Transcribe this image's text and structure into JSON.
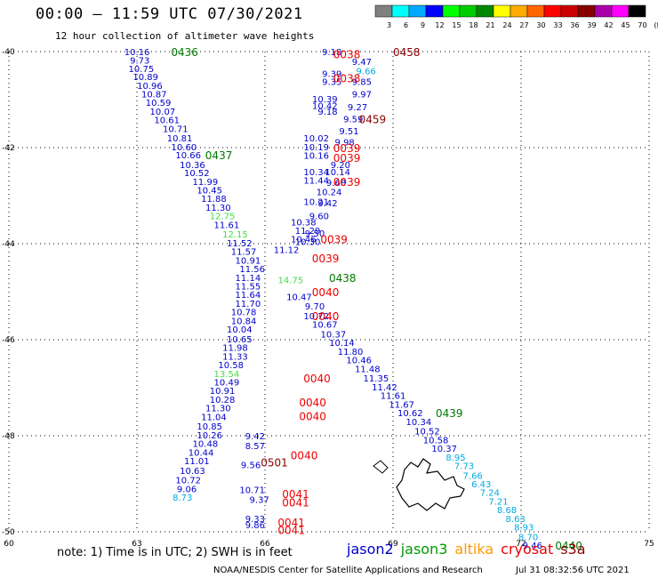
{
  "header": {
    "title": "00:00 – 11:59 UTC 07/30/2021",
    "subtitle": "12 hour collection of altimeter wave heights"
  },
  "footer": {
    "note": "note: 1) Time is in UTC; 2) SWH is in feet",
    "credit": "NOAA/NESDIS Center for Satellite Applications and Research",
    "timestamp": "Jul 31 08:32:56 UTC 2021"
  },
  "colorbar": {
    "labels": [
      "3",
      "6",
      "9",
      "12",
      "15",
      "18",
      "21",
      "24",
      "27",
      "30",
      "33",
      "36",
      "39",
      "42",
      "45",
      "70",
      "(ft)"
    ],
    "colors": [
      "#808080",
      "#00ffff",
      "#00aaff",
      "#0000ff",
      "#00ff00",
      "#00cc00",
      "#008800",
      "#ffff00",
      "#ffaa00",
      "#ff6600",
      "#ff0000",
      "#cc0000",
      "#880000",
      "#aa00aa",
      "#ff00ff",
      "#000000"
    ]
  },
  "legend": {
    "items": [
      {
        "name": "jason2",
        "color": "#0000cc"
      },
      {
        "name": "jason3",
        "color": "#009900"
      },
      {
        "name": "altika",
        "color": "#ff9900"
      },
      {
        "name": "cryosat",
        "color": "#ee0000"
      },
      {
        "name": "s3a",
        "color": "#880000"
      }
    ]
  },
  "chart_data": {
    "type": "scatter",
    "title": "00:00 – 11:59 UTC 07/30/2021",
    "subtitle": "12 hour collection of altimeter wave heights",
    "xlim": [
      60,
      75
    ],
    "ylim": [
      -50,
      -40
    ],
    "x_ticks": [
      60,
      63,
      66,
      69,
      72,
      75
    ],
    "y_ticks": [
      -40,
      -42,
      -44,
      -46,
      -48,
      -50
    ],
    "grid": true,
    "colors": {
      "darkblue": "#0000cc",
      "lightblue": "#00aadd",
      "green": "#44dd44",
      "darkgreen": "#007700",
      "red": "#ee0000",
      "maroon": "#880000"
    },
    "values": [
      {
        "x": 63.3,
        "y": -40.0,
        "v": "10.16",
        "c": "darkblue"
      },
      {
        "x": 63.3,
        "y": -40.18,
        "v": "9.73",
        "c": "darkblue"
      },
      {
        "x": 63.4,
        "y": -40.35,
        "v": "10.75",
        "c": "darkblue"
      },
      {
        "x": 63.5,
        "y": -40.52,
        "v": "10.89",
        "c": "darkblue"
      },
      {
        "x": 63.6,
        "y": -40.7,
        "v": "10.96",
        "c": "darkblue"
      },
      {
        "x": 63.7,
        "y": -40.88,
        "v": "10.87",
        "c": "darkblue"
      },
      {
        "x": 63.8,
        "y": -41.06,
        "v": "10.59",
        "c": "darkblue"
      },
      {
        "x": 63.9,
        "y": -41.24,
        "v": "10.07",
        "c": "darkblue"
      },
      {
        "x": 64.0,
        "y": -41.42,
        "v": "10.61",
        "c": "darkblue"
      },
      {
        "x": 64.2,
        "y": -41.6,
        "v": "10.71",
        "c": "darkblue"
      },
      {
        "x": 64.3,
        "y": -41.8,
        "v": "10.81",
        "c": "darkblue"
      },
      {
        "x": 64.4,
        "y": -41.98,
        "v": "10.60",
        "c": "darkblue"
      },
      {
        "x": 64.5,
        "y": -42.15,
        "v": "10.66",
        "c": "darkblue"
      },
      {
        "x": 64.6,
        "y": -42.35,
        "v": "10.36",
        "c": "darkblue"
      },
      {
        "x": 64.7,
        "y": -42.52,
        "v": "10.52",
        "c": "darkblue"
      },
      {
        "x": 64.9,
        "y": -42.7,
        "v": "11.99",
        "c": "darkblue"
      },
      {
        "x": 65.0,
        "y": -42.88,
        "v": "10.45",
        "c": "darkblue"
      },
      {
        "x": 65.1,
        "y": -43.06,
        "v": "11.88",
        "c": "darkblue"
      },
      {
        "x": 65.2,
        "y": -43.24,
        "v": "11.30",
        "c": "darkblue"
      },
      {
        "x": 65.3,
        "y": -43.42,
        "v": "12.75",
        "c": "green"
      },
      {
        "x": 65.4,
        "y": -43.6,
        "v": "11.61",
        "c": "darkblue"
      },
      {
        "x": 65.6,
        "y": -43.8,
        "v": "12.15",
        "c": "green"
      },
      {
        "x": 65.7,
        "y": -43.98,
        "v": "11.52",
        "c": "darkblue"
      },
      {
        "x": 65.8,
        "y": -44.16,
        "v": "11.57",
        "c": "darkblue"
      },
      {
        "x": 65.9,
        "y": -44.34,
        "v": "10.91",
        "c": "darkblue"
      },
      {
        "x": 66.0,
        "y": -44.52,
        "v": "11.56",
        "c": "darkblue"
      },
      {
        "x": 65.9,
        "y": -44.7,
        "v": "11.14",
        "c": "darkblue"
      },
      {
        "x": 65.9,
        "y": -44.88,
        "v": "11.55",
        "c": "darkblue"
      },
      {
        "x": 65.9,
        "y": -45.06,
        "v": "11.64",
        "c": "darkblue"
      },
      {
        "x": 65.9,
        "y": -45.24,
        "v": "11.70",
        "c": "darkblue"
      },
      {
        "x": 65.8,
        "y": -45.42,
        "v": "10.78",
        "c": "darkblue"
      },
      {
        "x": 65.8,
        "y": -45.6,
        "v": "10.84",
        "c": "darkblue"
      },
      {
        "x": 65.7,
        "y": -45.78,
        "v": "10.04",
        "c": "darkblue"
      },
      {
        "x": 65.7,
        "y": -45.98,
        "v": "10.65",
        "c": "darkblue"
      },
      {
        "x": 65.6,
        "y": -46.16,
        "v": "11.98",
        "c": "darkblue"
      },
      {
        "x": 65.6,
        "y": -46.34,
        "v": "11.33",
        "c": "darkblue"
      },
      {
        "x": 65.5,
        "y": -46.52,
        "v": "10.58",
        "c": "darkblue"
      },
      {
        "x": 65.4,
        "y": -46.7,
        "v": "13.54",
        "c": "green"
      },
      {
        "x": 65.4,
        "y": -46.88,
        "v": "10.49",
        "c": "darkblue"
      },
      {
        "x": 65.3,
        "y": -47.06,
        "v": "10.91",
        "c": "darkblue"
      },
      {
        "x": 65.3,
        "y": -47.24,
        "v": "10.28",
        "c": "darkblue"
      },
      {
        "x": 65.2,
        "y": -47.42,
        "v": "11.30",
        "c": "darkblue"
      },
      {
        "x": 65.1,
        "y": -47.6,
        "v": "11.04",
        "c": "darkblue"
      },
      {
        "x": 65.0,
        "y": -47.8,
        "v": "10.85",
        "c": "darkblue"
      },
      {
        "x": 65.0,
        "y": -47.98,
        "v": "10.26",
        "c": "darkblue"
      },
      {
        "x": 64.9,
        "y": -48.16,
        "v": "10.48",
        "c": "darkblue"
      },
      {
        "x": 64.8,
        "y": -48.34,
        "v": "10.44",
        "c": "darkblue"
      },
      {
        "x": 64.7,
        "y": -48.52,
        "v": "11.01",
        "c": "darkblue"
      },
      {
        "x": 64.6,
        "y": -48.72,
        "v": "10.63",
        "c": "darkblue"
      },
      {
        "x": 64.5,
        "y": -48.92,
        "v": "10.72",
        "c": "darkblue"
      },
      {
        "x": 64.4,
        "y": -49.1,
        "v": "9.06",
        "c": "darkblue"
      },
      {
        "x": 64.3,
        "y": -49.28,
        "v": "8.73",
        "c": "lightblue"
      },
      {
        "x": 67.8,
        "y": -40.0,
        "v": "9.18",
        "c": "darkblue"
      },
      {
        "x": 68.5,
        "y": -40.2,
        "v": "9.47",
        "c": "darkblue"
      },
      {
        "x": 68.6,
        "y": -40.4,
        "v": "9.66",
        "c": "lightblue"
      },
      {
        "x": 67.8,
        "y": -40.45,
        "v": "9.39",
        "c": "darkblue"
      },
      {
        "x": 67.8,
        "y": -40.62,
        "v": "9.35",
        "c": "darkblue"
      },
      {
        "x": 68.5,
        "y": -40.62,
        "v": "9.85",
        "c": "darkblue"
      },
      {
        "x": 68.5,
        "y": -40.88,
        "v": "9.97",
        "c": "darkblue"
      },
      {
        "x": 67.7,
        "y": -40.98,
        "v": "10.39",
        "c": "darkblue"
      },
      {
        "x": 67.7,
        "y": -41.12,
        "v": "10.42",
        "c": "darkblue"
      },
      {
        "x": 67.7,
        "y": -41.24,
        "v": "9.18",
        "c": "darkblue"
      },
      {
        "x": 68.4,
        "y": -41.15,
        "v": "9.27",
        "c": "darkblue"
      },
      {
        "x": 68.3,
        "y": -41.4,
        "v": "9.59",
        "c": "darkblue"
      },
      {
        "x": 68.2,
        "y": -41.65,
        "v": "9.51",
        "c": "darkblue"
      },
      {
        "x": 67.5,
        "y": -41.8,
        "v": "10.02",
        "c": "darkblue"
      },
      {
        "x": 67.5,
        "y": -41.98,
        "v": "10.19",
        "c": "darkblue"
      },
      {
        "x": 67.5,
        "y": -42.16,
        "v": "10.16",
        "c": "darkblue"
      },
      {
        "x": 68.1,
        "y": -41.88,
        "v": "9.98",
        "c": "darkblue"
      },
      {
        "x": 68.0,
        "y": -42.35,
        "v": "9.20",
        "c": "darkblue"
      },
      {
        "x": 67.5,
        "y": -42.5,
        "v": "10.34",
        "c": "darkblue"
      },
      {
        "x": 67.5,
        "y": -42.68,
        "v": "11.44",
        "c": "darkblue"
      },
      {
        "x": 68.0,
        "y": -42.5,
        "v": "10.14",
        "c": "darkblue"
      },
      {
        "x": 67.9,
        "y": -42.72,
        "v": "9.68",
        "c": "darkblue"
      },
      {
        "x": 67.8,
        "y": -42.92,
        "v": "10.24",
        "c": "darkblue"
      },
      {
        "x": 67.5,
        "y": -43.12,
        "v": "10.21",
        "c": "darkblue"
      },
      {
        "x": 67.7,
        "y": -43.15,
        "v": "9.42",
        "c": "darkblue"
      },
      {
        "x": 67.2,
        "y": -43.55,
        "v": "10.38",
        "c": "darkblue"
      },
      {
        "x": 67.5,
        "y": -43.42,
        "v": "9.60",
        "c": "darkblue"
      },
      {
        "x": 67.3,
        "y": -43.72,
        "v": "11.29",
        "c": "darkblue"
      },
      {
        "x": 67.4,
        "y": -43.78,
        "v": "9.50",
        "c": "darkblue"
      },
      {
        "x": 67.2,
        "y": -43.9,
        "v": "10.46",
        "c": "darkblue"
      },
      {
        "x": 67.3,
        "y": -43.95,
        "v": "10.30",
        "c": "darkblue"
      },
      {
        "x": 66.8,
        "y": -44.12,
        "v": "11.12",
        "c": "darkblue"
      },
      {
        "x": 66.9,
        "y": -44.75,
        "v": "14.75",
        "c": "green"
      },
      {
        "x": 67.1,
        "y": -45.1,
        "v": "10.47",
        "c": "darkblue"
      },
      {
        "x": 67.4,
        "y": -45.3,
        "v": "9.70",
        "c": "darkblue"
      },
      {
        "x": 67.5,
        "y": -45.5,
        "v": "10.72",
        "c": "darkblue"
      },
      {
        "x": 67.7,
        "y": -45.68,
        "v": "10.67",
        "c": "darkblue"
      },
      {
        "x": 67.9,
        "y": -45.88,
        "v": "10.37",
        "c": "darkblue"
      },
      {
        "x": 68.1,
        "y": -46.06,
        "v": "10.14",
        "c": "darkblue"
      },
      {
        "x": 68.3,
        "y": -46.24,
        "v": "11.80",
        "c": "darkblue"
      },
      {
        "x": 68.5,
        "y": -46.42,
        "v": "10.46",
        "c": "darkblue"
      },
      {
        "x": 68.7,
        "y": -46.6,
        "v": "11.48",
        "c": "darkblue"
      },
      {
        "x": 68.9,
        "y": -46.8,
        "v": "11.35",
        "c": "darkblue"
      },
      {
        "x": 69.1,
        "y": -46.98,
        "v": "11.42",
        "c": "darkblue"
      },
      {
        "x": 69.3,
        "y": -47.16,
        "v": "11.61",
        "c": "darkblue"
      },
      {
        "x": 69.5,
        "y": -47.34,
        "v": "11.67",
        "c": "darkblue"
      },
      {
        "x": 69.7,
        "y": -47.52,
        "v": "10.62",
        "c": "darkblue"
      },
      {
        "x": 69.9,
        "y": -47.7,
        "v": "10.34",
        "c": "darkblue"
      },
      {
        "x": 70.1,
        "y": -47.9,
        "v": "10.52",
        "c": "darkblue"
      },
      {
        "x": 70.3,
        "y": -48.08,
        "v": "10.58",
        "c": "darkblue"
      },
      {
        "x": 70.5,
        "y": -48.26,
        "v": "10.37",
        "c": "darkblue"
      },
      {
        "x": 70.7,
        "y": -48.44,
        "v": "8.95",
        "c": "lightblue"
      },
      {
        "x": 70.9,
        "y": -48.62,
        "v": "7.73",
        "c": "lightblue"
      },
      {
        "x": 71.1,
        "y": -48.82,
        "v": "7.66",
        "c": "lightblue"
      },
      {
        "x": 71.3,
        "y": -49.0,
        "v": "6.43",
        "c": "lightblue"
      },
      {
        "x": 71.5,
        "y": -49.18,
        "v": "7.24",
        "c": "lightblue"
      },
      {
        "x": 71.7,
        "y": -49.36,
        "v": "7.21",
        "c": "lightblue"
      },
      {
        "x": 71.9,
        "y": -49.54,
        "v": "8.68",
        "c": "lightblue"
      },
      {
        "x": 72.1,
        "y": -49.72,
        "v": "8.63",
        "c": "lightblue"
      },
      {
        "x": 72.3,
        "y": -49.9,
        "v": "8.93",
        "c": "lightblue"
      },
      {
        "x": 72.4,
        "y": -50.1,
        "v": "8.70",
        "c": "lightblue"
      },
      {
        "x": 72.5,
        "y": -50.28,
        "v": "9.46",
        "c": "darkblue"
      },
      {
        "x": 66.0,
        "y": -48.0,
        "v": "9.42",
        "c": "darkblue"
      },
      {
        "x": 66.0,
        "y": -48.2,
        "v": "8.57",
        "c": "darkblue"
      },
      {
        "x": 65.9,
        "y": -48.6,
        "v": "9.56",
        "c": "darkblue"
      },
      {
        "x": 66.0,
        "y": -49.12,
        "v": "10.71",
        "c": "darkblue"
      },
      {
        "x": 66.1,
        "y": -49.32,
        "v": "9.37",
        "c": "darkblue"
      },
      {
        "x": 66.0,
        "y": -49.72,
        "v": "9.33",
        "c": "darkblue"
      },
      {
        "x": 66.0,
        "y": -49.85,
        "v": "9.86",
        "c": "darkblue"
      }
    ],
    "labels": [
      {
        "x": 63.8,
        "y": -40.0,
        "t": "0436",
        "c": "darkgreen"
      },
      {
        "x": 64.6,
        "y": -42.15,
        "t": "0437",
        "c": "darkgreen"
      },
      {
        "x": 67.5,
        "y": -44.7,
        "t": "0438",
        "c": "darkgreen"
      },
      {
        "x": 70.0,
        "y": -47.52,
        "t": "0439",
        "c": "darkgreen"
      },
      {
        "x": 72.8,
        "y": -50.28,
        "t": "0440",
        "c": "darkgreen"
      },
      {
        "x": 69.0,
        "y": -40.0,
        "t": "0458",
        "c": "maroon"
      },
      {
        "x": 68.2,
        "y": -41.4,
        "t": "0459",
        "c": "maroon"
      },
      {
        "x": 67.6,
        "y": -40.05,
        "t": "0038",
        "c": "red"
      },
      {
        "x": 67.6,
        "y": -40.55,
        "t": "0038",
        "c": "red"
      },
      {
        "x": 67.6,
        "y": -42.0,
        "t": "0039",
        "c": "red"
      },
      {
        "x": 67.6,
        "y": -42.2,
        "t": "0039",
        "c": "red"
      },
      {
        "x": 67.6,
        "y": -42.7,
        "t": "0039",
        "c": "red"
      },
      {
        "x": 67.3,
        "y": -43.9,
        "t": "0039",
        "c": "red"
      },
      {
        "x": 67.1,
        "y": -44.3,
        "t": "0039",
        "c": "red"
      },
      {
        "x": 67.1,
        "y": -45.0,
        "t": "0040",
        "c": "red"
      },
      {
        "x": 67.1,
        "y": -45.5,
        "t": "0040",
        "c": "red"
      },
      {
        "x": 66.9,
        "y": -46.8,
        "t": "0040",
        "c": "red"
      },
      {
        "x": 66.8,
        "y": -47.3,
        "t": "0040",
        "c": "red"
      },
      {
        "x": 66.8,
        "y": -47.58,
        "t": "0040",
        "c": "red"
      },
      {
        "x": 66.6,
        "y": -48.4,
        "t": "0040",
        "c": "red"
      },
      {
        "x": 65.9,
        "y": -48.55,
        "t": "0501",
        "c": "maroon"
      },
      {
        "x": 66.4,
        "y": -49.2,
        "t": "0041",
        "c": "red"
      },
      {
        "x": 66.4,
        "y": -49.38,
        "t": "0041",
        "c": "red"
      },
      {
        "x": 66.3,
        "y": -49.8,
        "t": "0041",
        "c": "red"
      },
      {
        "x": 66.3,
        "y": -49.95,
        "t": "0041",
        "c": "red"
      }
    ]
  }
}
